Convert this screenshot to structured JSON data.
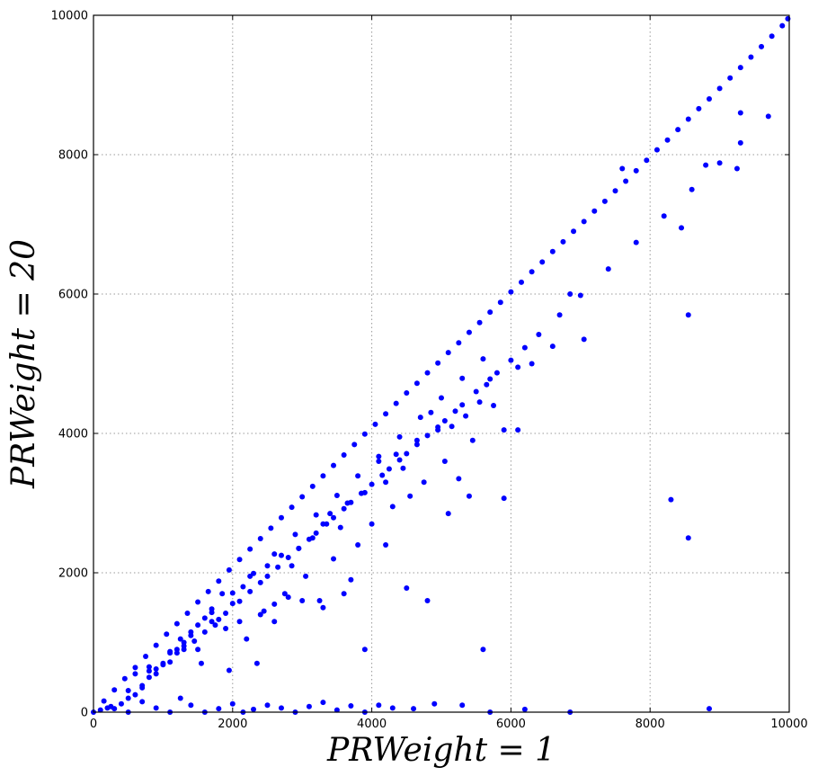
{
  "chart_data": {
    "type": "scatter",
    "title": "",
    "xlabel": "PRWeight = 1",
    "ylabel": "PRWeight = 20",
    "xlim": [
      0,
      10000
    ],
    "ylim": [
      0,
      10000
    ],
    "x_ticks": [
      0,
      2000,
      4000,
      6000,
      8000,
      10000
    ],
    "y_ticks": [
      0,
      2000,
      4000,
      6000,
      8000,
      10000
    ],
    "x_tick_labels": [
      "0",
      "2000",
      "4000",
      "6000",
      "8000",
      "10000"
    ],
    "y_tick_labels": [
      "0",
      "2000",
      "4000",
      "6000",
      "8000",
      "10000"
    ],
    "grid": true,
    "marker_color": "#0000ff",
    "series": [
      {
        "x": [
          0,
          150,
          300,
          450,
          600,
          750,
          900,
          1050,
          1200,
          1350,
          1500,
          1650,
          1800,
          1950,
          2100,
          2250,
          2400,
          2550,
          2700,
          2850,
          3000,
          3150,
          3300,
          3450,
          3600,
          3750,
          3900,
          4050,
          4200,
          4350,
          4500,
          4650,
          4800,
          4950,
          5100,
          5250,
          5400,
          5550,
          5700,
          5850,
          6000,
          6150,
          6300,
          6450,
          6600,
          6750,
          6900,
          7050,
          7200,
          7350,
          7500,
          7650,
          7800,
          7950,
          8100,
          8250,
          8400,
          8550,
          8700,
          8850,
          9000,
          9150,
          9300,
          9450,
          9600,
          9750,
          9900,
          9980,
          200,
          500,
          800,
          1100,
          1400,
          1700,
          2000,
          2300,
          2600,
          2900,
          3200,
          3500,
          3800,
          4100,
          4400,
          4700,
          5000,
          5300,
          5600,
          500,
          700,
          900,
          1100,
          1300,
          1450,
          1600,
          1800,
          1900,
          2100,
          2250,
          2400,
          2500,
          2650,
          2800,
          2950,
          3100,
          3200,
          3350,
          3450,
          3600,
          3700,
          3850,
          4000,
          4150,
          4250,
          4400,
          4500,
          4650,
          4800,
          4950,
          5050,
          5200,
          5300,
          5500,
          5700,
          5800,
          6000,
          6200,
          6400,
          6700,
          7000,
          7400,
          7800,
          8200,
          8600,
          9000,
          9300,
          9700,
          300,
          400,
          600,
          700,
          800,
          900,
          1000,
          1100,
          1200,
          1250,
          1300,
          1400,
          1500,
          1550,
          1600,
          1700,
          1750,
          1850,
          1950,
          2000,
          2100,
          2150,
          2250,
          2350,
          2450,
          2500,
          2600,
          2700,
          2750,
          2850,
          2950,
          3050,
          3150,
          3250,
          3300,
          3400,
          3450,
          3550,
          3650,
          3700,
          3800,
          3900,
          4000,
          4100,
          4200,
          4300,
          4350,
          4450,
          4550,
          4650,
          4750,
          4850,
          4950,
          5050,
          5150,
          5250,
          5350,
          5450,
          5550,
          5650,
          5750,
          5900,
          6100,
          6300,
          6600,
          6850,
          7050,
          7600,
          8300,
          8450,
          8550,
          8550,
          8800,
          9250,
          9300,
          100,
          250,
          500,
          700,
          900,
          1100,
          1250,
          1400,
          1600,
          1800,
          2000,
          2150,
          2300,
          2500,
          2700,
          2900,
          3100,
          3300,
          3500,
          3700,
          3900,
          4100,
          4300,
          4600,
          4900,
          5300,
          5700,
          6200,
          6850,
          8850,
          600,
          800,
          1000,
          1200,
          1300,
          1500,
          1700,
          1900,
          2200,
          2400,
          2600,
          2800,
          3000,
          3300,
          3600,
          3900,
          4200,
          4500,
          4800,
          5100,
          5400,
          5600,
          5900,
          6100
        ],
        "y": [
          0,
          160,
          320,
          480,
          640,
          800,
          960,
          1120,
          1270,
          1420,
          1580,
          1730,
          1880,
          2040,
          2190,
          2340,
          2490,
          2640,
          2790,
          2940,
          3090,
          3240,
          3390,
          3540,
          3690,
          3840,
          3990,
          4130,
          4280,
          4430,
          4580,
          4720,
          4870,
          5010,
          5160,
          5300,
          5450,
          5590,
          5740,
          5880,
          6030,
          6170,
          6320,
          6460,
          6610,
          6750,
          6900,
          7040,
          7190,
          7330,
          7480,
          7620,
          7770,
          7920,
          8070,
          8210,
          8360,
          8510,
          8660,
          8800,
          8950,
          9100,
          9250,
          9400,
          9550,
          9700,
          9850,
          9950,
          60,
          310,
          590,
          870,
          1150,
          1430,
          1710,
          1990,
          2270,
          2550,
          2830,
          3110,
          3390,
          3670,
          3950,
          4230,
          4510,
          4790,
          5070,
          200,
          380,
          550,
          720,
          900,
          1020,
          1150,
          1330,
          1420,
          1590,
          1730,
          1860,
          1950,
          2080,
          2220,
          2350,
          2480,
          2570,
          2700,
          2790,
          2920,
          3010,
          3140,
          3270,
          3400,
          3490,
          3620,
          3710,
          3840,
          3970,
          4090,
          4180,
          4320,
          4410,
          4600,
          4780,
          4870,
          5050,
          5230,
          5420,
          5700,
          5980,
          6360,
          6740,
          7120,
          7500,
          7880,
          8170,
          8550,
          50,
          120,
          250,
          350,
          500,
          620,
          680,
          850,
          900,
          1050,
          950,
          1100,
          1250,
          700,
          1350,
          1480,
          1250,
          1700,
          600,
          1560,
          1300,
          1800,
          1950,
          700,
          1450,
          2100,
          1550,
          2250,
          1700,
          2100,
          2350,
          1950,
          2500,
          1600,
          2700,
          2850,
          2200,
          2650,
          3000,
          1900,
          2400,
          3150,
          2700,
          3600,
          3300,
          2950,
          3700,
          3500,
          3100,
          3900,
          3300,
          4300,
          4050,
          3600,
          4100,
          3350,
          4250,
          3900,
          4450,
          4700,
          4400,
          4050,
          4950,
          5000,
          5250,
          6000,
          5350,
          7800,
          3050,
          6950,
          5700,
          2500,
          7850,
          7800,
          8600,
          30,
          80,
          0,
          150,
          60,
          0,
          200,
          100,
          0,
          50,
          120,
          0,
          40,
          100,
          60,
          0,
          80,
          140,
          30,
          90,
          0,
          100,
          60,
          50,
          120,
          100,
          0,
          40,
          0,
          50,
          550,
          650,
          700,
          850,
          1000,
          900,
          1300,
          1200,
          1050,
          1400,
          1300,
          1650,
          1600,
          1500,
          1700,
          900,
          2400,
          1780,
          1600,
          2850,
          3100,
          900,
          3070,
          4050
        ]
      }
    ]
  }
}
